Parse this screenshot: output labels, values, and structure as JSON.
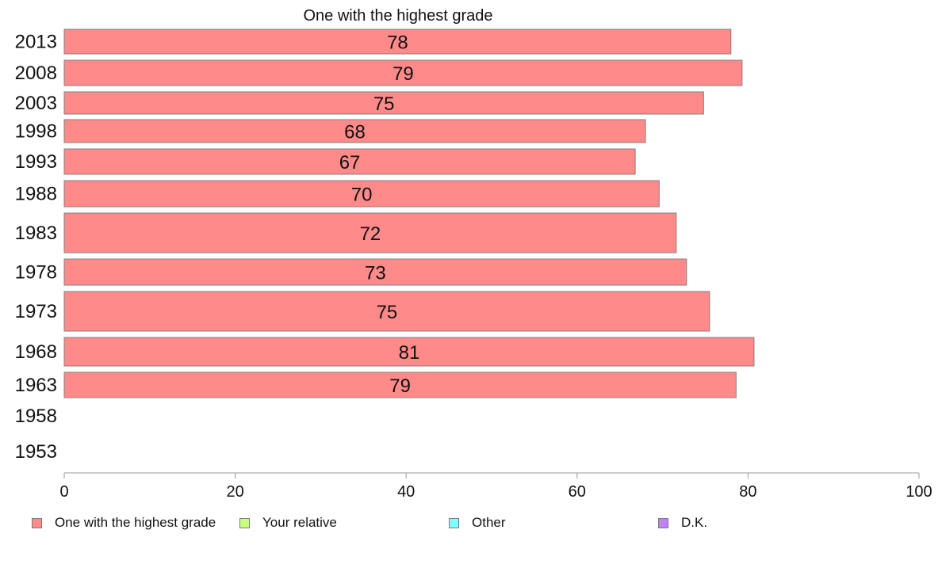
{
  "chart_data": {
    "type": "bar",
    "orientation": "horizontal",
    "title": "One with the highest grade",
    "xlabel": "",
    "ylabel": "",
    "xlim": [
      0,
      100
    ],
    "x_ticks": [
      0,
      20,
      40,
      60,
      80,
      100
    ],
    "grid": false,
    "categories": [
      "2013",
      "2008",
      "2003",
      "1998",
      "1993",
      "1988",
      "1983",
      "1978",
      "1973",
      "1968",
      "1963",
      "1958",
      "1953"
    ],
    "series": [
      {
        "name": "One with the highest grade",
        "color": "#ff8a8a",
        "values": [
          78,
          79.3,
          74.8,
          68,
          66.8,
          69.6,
          71.6,
          72.8,
          75.5,
          80.7,
          78.6,
          null,
          null
        ],
        "labels": [
          "78",
          "79",
          "75",
          "68",
          "67",
          "70",
          "72",
          "73",
          "75",
          "81",
          "79",
          "",
          ""
        ]
      }
    ],
    "legend": {
      "placement": "bottom",
      "entries": [
        {
          "label": "One with the highest grade",
          "color": "#ff8a8a"
        },
        {
          "label": "Your relative",
          "color": "#c8ff80"
        },
        {
          "label": "Other",
          "color": "#80ffff"
        },
        {
          "label": "D.K.",
          "color": "#c080ff"
        }
      ]
    }
  }
}
